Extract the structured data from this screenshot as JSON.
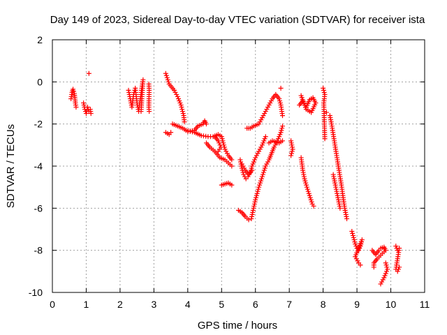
{
  "chart_data": {
    "type": "scatter",
    "title": "Day 149 of 2023, Sidereal Day-to-day VTEC variation (SDTVAR) for receiver ista",
    "xlabel": "GPS time / hours",
    "ylabel": "SDTVAR / TECUs",
    "xlim": [
      0,
      11
    ],
    "ylim": [
      -10,
      2
    ],
    "xticks": [
      0,
      1,
      2,
      3,
      4,
      5,
      6,
      7,
      8,
      9,
      10,
      11
    ],
    "yticks": [
      -10,
      -8,
      -6,
      -4,
      -2,
      0,
      2
    ],
    "grid": true,
    "marker": "+",
    "color": "#ff0000",
    "series": [
      {
        "name": "SDTVAR",
        "segments": [
          [
            [
              0.55,
              -0.8
            ],
            [
              0.58,
              -0.5
            ],
            [
              0.61,
              -0.35
            ],
            [
              0.65,
              -0.55
            ],
            [
              0.68,
              -1.0
            ],
            [
              0.7,
              -1.2
            ]
          ],
          [
            [
              0.92,
              -1.0
            ],
            [
              0.96,
              -1.3
            ],
            [
              1.0,
              -1.5
            ],
            [
              1.04,
              -1.2
            ],
            [
              1.08,
              -1.4
            ],
            [
              1.12,
              -1.3
            ],
            [
              1.14,
              -1.5
            ]
          ],
          [
            [
              1.08,
              0.4
            ]
          ],
          [
            [
              2.25,
              -0.4
            ],
            [
              2.3,
              -0.8
            ],
            [
              2.35,
              -1.2
            ],
            [
              2.4,
              -0.6
            ],
            [
              2.45,
              -0.3
            ],
            [
              2.5,
              -1.0
            ],
            [
              2.55,
              -1.4
            ],
            [
              2.6,
              -0.8
            ],
            [
              2.65,
              -0.2
            ],
            [
              2.68,
              0.1
            ],
            [
              2.62,
              -1.4
            ]
          ],
          [
            [
              2.85,
              -0.1
            ],
            [
              2.86,
              -0.4
            ],
            [
              2.85,
              -1.2
            ],
            [
              2.86,
              -1.4
            ]
          ],
          [
            [
              3.35,
              0.4
            ],
            [
              3.45,
              -0.1
            ],
            [
              3.6,
              -0.4
            ],
            [
              3.7,
              -0.7
            ],
            [
              3.8,
              -1.1
            ],
            [
              3.88,
              -1.6
            ],
            [
              3.9,
              -1.9
            ]
          ],
          [
            [
              3.35,
              -2.4
            ],
            [
              3.45,
              -2.5
            ],
            [
              3.5,
              -2.4
            ]
          ],
          [
            [
              3.55,
              -2.0
            ],
            [
              3.7,
              -2.1
            ],
            [
              3.85,
              -2.2
            ],
            [
              4.0,
              -2.35
            ],
            [
              4.2,
              -2.3
            ],
            [
              4.3,
              -2.1
            ],
            [
              4.45,
              -2.0
            ],
            [
              4.5,
              -1.85
            ],
            [
              4.55,
              -2.0
            ]
          ],
          [
            [
              3.95,
              -2.3
            ],
            [
              4.2,
              -2.4
            ],
            [
              4.4,
              -2.55
            ],
            [
              4.6,
              -2.6
            ],
            [
              4.75,
              -2.6
            ],
            [
              4.9,
              -2.5
            ],
            [
              5.0,
              -2.6
            ],
            [
              5.05,
              -2.9
            ],
            [
              5.1,
              -3.2
            ],
            [
              5.2,
              -3.5
            ],
            [
              5.3,
              -3.7
            ]
          ],
          [
            [
              4.55,
              -2.9
            ],
            [
              4.65,
              -3.1
            ],
            [
              4.8,
              -3.3
            ],
            [
              4.95,
              -3.6
            ],
            [
              5.1,
              -3.7
            ],
            [
              5.2,
              -3.85
            ],
            [
              5.3,
              -4.0
            ]
          ],
          [
            [
              4.8,
              -2.6
            ],
            [
              4.9,
              -2.8
            ],
            [
              4.98,
              -3.1
            ],
            [
              4.9,
              -3.3
            ]
          ],
          [
            [
              5.0,
              -4.9
            ],
            [
              5.1,
              -4.85
            ],
            [
              5.2,
              -4.8
            ],
            [
              5.3,
              -4.9
            ]
          ],
          [
            [
              5.5,
              -6.1
            ],
            [
              5.6,
              -6.2
            ],
            [
              5.7,
              -6.4
            ],
            [
              5.8,
              -6.55
            ],
            [
              5.88,
              -6.5
            ],
            [
              5.93,
              -6.1
            ],
            [
              6.0,
              -5.6
            ],
            [
              6.1,
              -5.0
            ],
            [
              6.2,
              -4.5
            ],
            [
              6.3,
              -4.0
            ],
            [
              6.4,
              -3.7
            ],
            [
              6.55,
              -3.1
            ],
            [
              6.65,
              -2.8
            ],
            [
              6.75,
              -2.4
            ],
            [
              6.8,
              -2.1
            ]
          ],
          [
            [
              5.55,
              -3.7
            ],
            [
              5.6,
              -4.1
            ],
            [
              5.65,
              -4.4
            ],
            [
              5.72,
              -4.6
            ],
            [
              5.78,
              -4.5
            ],
            [
              5.85,
              -4.3
            ],
            [
              5.9,
              -4.0
            ],
            [
              6.0,
              -3.6
            ],
            [
              6.1,
              -3.3
            ],
            [
              6.2,
              -3.0
            ],
            [
              6.3,
              -2.6
            ]
          ],
          [
            [
              5.6,
              -3.9
            ],
            [
              5.7,
              -4.2
            ],
            [
              5.8,
              -4.4
            ],
            [
              5.9,
              -4.2
            ]
          ],
          [
            [
              5.75,
              -2.2
            ],
            [
              5.85,
              -2.2
            ],
            [
              5.95,
              -2.1
            ],
            [
              6.1,
              -2.0
            ],
            [
              6.2,
              -1.7
            ],
            [
              6.3,
              -1.4
            ],
            [
              6.4,
              -1.1
            ],
            [
              6.5,
              -0.8
            ],
            [
              6.6,
              -0.6
            ],
            [
              6.7,
              -0.8
            ],
            [
              6.75,
              -1.1
            ],
            [
              6.8,
              -1.6
            ]
          ],
          [
            [
              6.4,
              -2.9
            ],
            [
              6.5,
              -2.8
            ],
            [
              6.6,
              -2.85
            ],
            [
              6.7,
              -2.9
            ],
            [
              6.8,
              -2.8
            ]
          ],
          [
            [
              6.75,
              -0.3
            ]
          ],
          [
            [
              7.05,
              -2.8
            ],
            [
              7.1,
              -3.2
            ],
            [
              7.05,
              -3.5
            ]
          ],
          [
            [
              7.3,
              -1.1
            ],
            [
              7.4,
              -0.9
            ],
            [
              7.5,
              -1.2
            ],
            [
              7.6,
              -0.85
            ],
            [
              7.7,
              -0.75
            ],
            [
              7.78,
              -1.0
            ],
            [
              7.65,
              -1.45
            ],
            [
              7.5,
              -1.3
            ],
            [
              7.35,
              -0.65
            ]
          ],
          [
            [
              7.35,
              -3.6
            ],
            [
              7.4,
              -4.2
            ],
            [
              7.45,
              -4.6
            ],
            [
              7.52,
              -5.0
            ],
            [
              7.6,
              -5.4
            ],
            [
              7.68,
              -5.8
            ],
            [
              7.72,
              -5.9
            ]
          ],
          [
            [
              8.0,
              -0.3
            ],
            [
              8.05,
              -0.6
            ],
            [
              8.02,
              -1.0
            ],
            [
              8.05,
              -2.7
            ]
          ],
          [
            [
              8.1,
              -1.45
            ]
          ],
          [
            [
              8.2,
              -1.6
            ],
            [
              8.25,
              -2.0
            ],
            [
              8.3,
              -2.5
            ],
            [
              8.35,
              -3.0
            ],
            [
              8.4,
              -3.5
            ],
            [
              8.45,
              -4.0
            ],
            [
              8.5,
              -4.5
            ],
            [
              8.55,
              -5.0
            ],
            [
              8.6,
              -5.6
            ],
            [
              8.65,
              -6.1
            ],
            [
              8.7,
              -6.5
            ]
          ],
          [
            [
              8.3,
              -4.4
            ],
            [
              8.35,
              -4.8
            ],
            [
              8.4,
              -5.2
            ],
            [
              8.45,
              -5.6
            ],
            [
              8.5,
              -6.0
            ]
          ],
          [
            [
              8.85,
              -7.1
            ],
            [
              8.9,
              -7.4
            ],
            [
              8.95,
              -7.7
            ],
            [
              9.0,
              -7.9
            ],
            [
              9.05,
              -8.0
            ],
            [
              9.1,
              -7.8
            ],
            [
              9.15,
              -7.5
            ],
            [
              8.95,
              -8.3
            ],
            [
              9.05,
              -8.6
            ],
            [
              9.1,
              -8.7
            ]
          ],
          [
            [
              9.45,
              -8.0
            ],
            [
              9.55,
              -8.2
            ],
            [
              9.65,
              -8.0
            ],
            [
              9.7,
              -7.9
            ],
            [
              9.8,
              -7.85
            ],
            [
              9.85,
              -8.0
            ],
            [
              9.75,
              -8.15
            ],
            [
              9.6,
              -8.4
            ],
            [
              9.5,
              -8.6
            ],
            [
              9.5,
              -8.8
            ]
          ],
          [
            [
              9.7,
              -9.6
            ],
            [
              9.8,
              -9.3
            ],
            [
              9.9,
              -8.9
            ],
            [
              9.85,
              -8.6
            ]
          ],
          [
            [
              10.15,
              -7.8
            ],
            [
              10.2,
              -8.0
            ],
            [
              10.25,
              -7.9
            ],
            [
              10.15,
              -8.9
            ],
            [
              10.2,
              -9.0
            ],
            [
              10.25,
              -8.8
            ]
          ]
        ]
      }
    ]
  }
}
